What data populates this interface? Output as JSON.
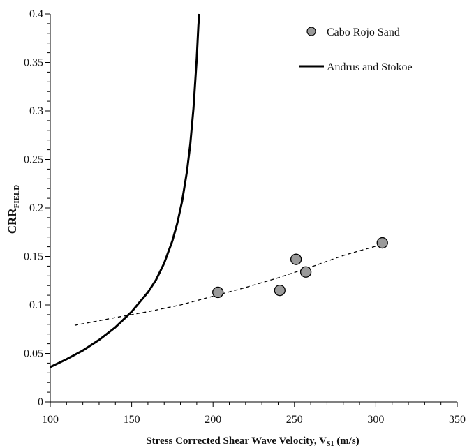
{
  "chart_data": {
    "type": "scatter",
    "xlabel": "Stress Corrected Shear Wave Velocity, V",
    "xlabel_sub": "S1",
    "xlabel_unit": " (m/s)",
    "ylabel": "CRR",
    "ylabel_sub": "FIELD",
    "xlim": [
      100,
      350
    ],
    "ylim": [
      0,
      0.4
    ],
    "x_ticks": [
      "100",
      "150",
      "200",
      "250",
      "300",
      "350"
    ],
    "y_ticks": [
      "0",
      "0.05",
      "0.1",
      "0.15",
      "0.2",
      "0.25",
      "0.3",
      "0.35",
      "0.4"
    ],
    "legend_position": "top-right",
    "series": [
      {
        "name": "Cabo Rojo Sand",
        "kind": "scatter",
        "color": "#9a9a9a",
        "points": [
          {
            "x": 203,
            "y": 0.113
          },
          {
            "x": 241,
            "y": 0.115
          },
          {
            "x": 251,
            "y": 0.147
          },
          {
            "x": 257,
            "y": 0.134
          },
          {
            "x": 304,
            "y": 0.164
          }
        ]
      },
      {
        "name": "Andrus and Stokoe",
        "kind": "line",
        "color": "#000000",
        "points": [
          {
            "x": 100,
            "y": 0.036
          },
          {
            "x": 110,
            "y": 0.044
          },
          {
            "x": 120,
            "y": 0.053
          },
          {
            "x": 130,
            "y": 0.064
          },
          {
            "x": 140,
            "y": 0.077
          },
          {
            "x": 150,
            "y": 0.093
          },
          {
            "x": 160,
            "y": 0.113
          },
          {
            "x": 165,
            "y": 0.126
          },
          {
            "x": 170,
            "y": 0.143
          },
          {
            "x": 175,
            "y": 0.166
          },
          {
            "x": 178,
            "y": 0.184
          },
          {
            "x": 181,
            "y": 0.207
          },
          {
            "x": 184,
            "y": 0.238
          },
          {
            "x": 186,
            "y": 0.266
          },
          {
            "x": 188,
            "y": 0.303
          },
          {
            "x": 190,
            "y": 0.355
          },
          {
            "x": 191,
            "y": 0.388
          },
          {
            "x": 191.5,
            "y": 0.4
          }
        ]
      },
      {
        "name": "",
        "kind": "trendline",
        "dashed": true,
        "color": "#000000",
        "points": [
          {
            "x": 115,
            "y": 0.079
          },
          {
            "x": 140,
            "y": 0.087
          },
          {
            "x": 160,
            "y": 0.093
          },
          {
            "x": 180,
            "y": 0.1
          },
          {
            "x": 200,
            "y": 0.109
          },
          {
            "x": 220,
            "y": 0.118
          },
          {
            "x": 240,
            "y": 0.128
          },
          {
            "x": 260,
            "y": 0.139
          },
          {
            "x": 280,
            "y": 0.151
          },
          {
            "x": 303,
            "y": 0.162
          }
        ]
      }
    ]
  }
}
